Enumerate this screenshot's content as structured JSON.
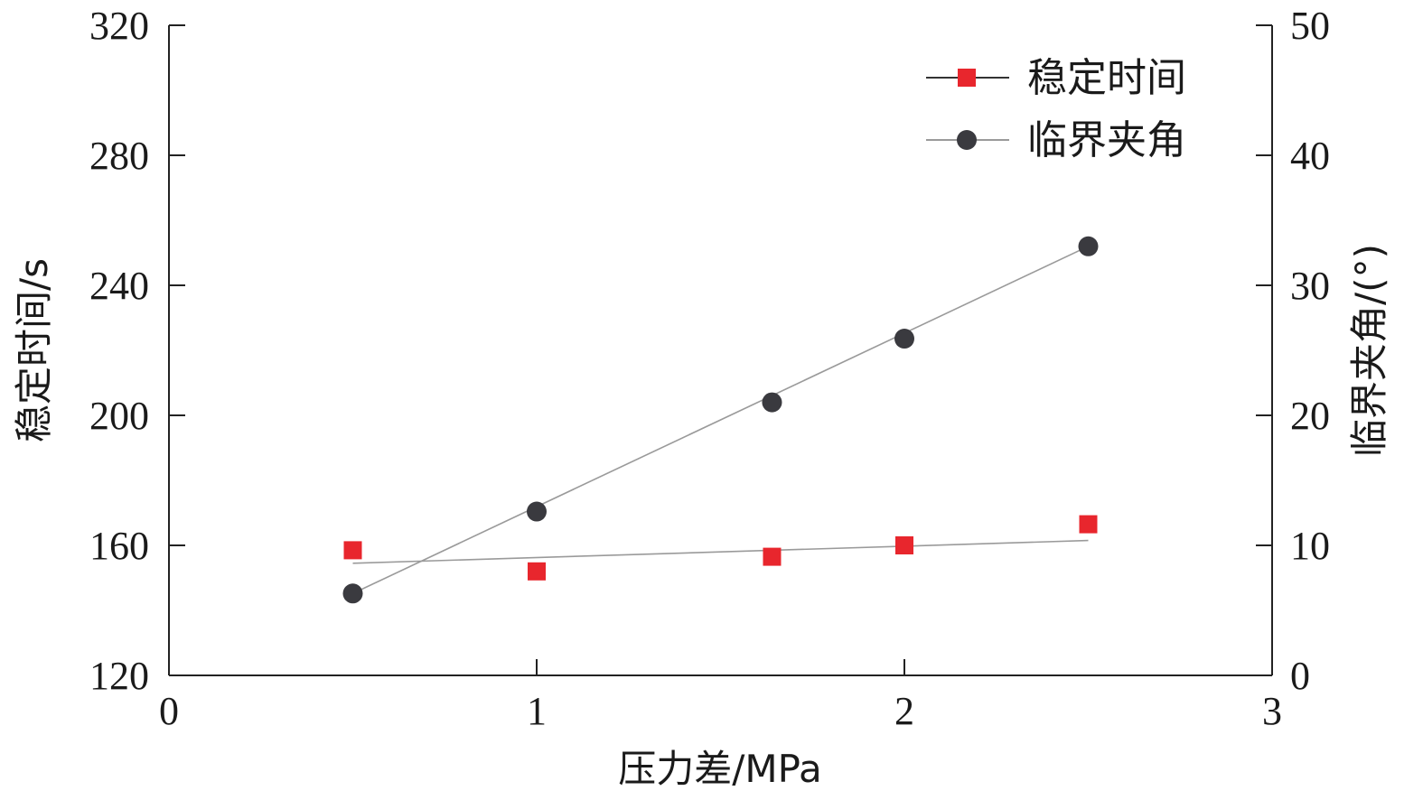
{
  "chart_data": {
    "type": "scatter",
    "xlabel": "压力差/MPa",
    "ylabel_left": "稳定时间/s",
    "ylabel_right": "临界夹角/(°)",
    "xlim": [
      0,
      3
    ],
    "ylim_left": [
      120,
      320
    ],
    "ylim_right": [
      0,
      50
    ],
    "x_ticks": [
      "0",
      "1",
      "2",
      "3"
    ],
    "y_left_ticks": [
      "120",
      "160",
      "200",
      "240",
      "280",
      "320"
    ],
    "y_right_ticks": [
      "0",
      "10",
      "20",
      "30",
      "40",
      "50"
    ],
    "legend_position": "top-right",
    "series": [
      {
        "name": "稳定时间",
        "axis": "left",
        "marker": "square",
        "color": "#e8262d",
        "x": [
          0.5,
          1.0,
          1.64,
          2.0,
          2.5
        ],
        "y": [
          158.5,
          152,
          156.5,
          160,
          166.5
        ],
        "fit": {
          "x": [
            0.5,
            2.5
          ],
          "y": [
            154.5,
            161.5
          ]
        }
      },
      {
        "name": "临界夹角",
        "axis": "right",
        "marker": "circle",
        "color": "#3a3a3f",
        "x": [
          0.5,
          1.0,
          1.64,
          2.0,
          2.5
        ],
        "y": [
          6.3,
          12.6,
          21.0,
          25.9,
          33.0
        ],
        "fit": {
          "x": [
            0.5,
            2.5
          ],
          "y": [
            6.3,
            33.0
          ]
        }
      }
    ]
  }
}
